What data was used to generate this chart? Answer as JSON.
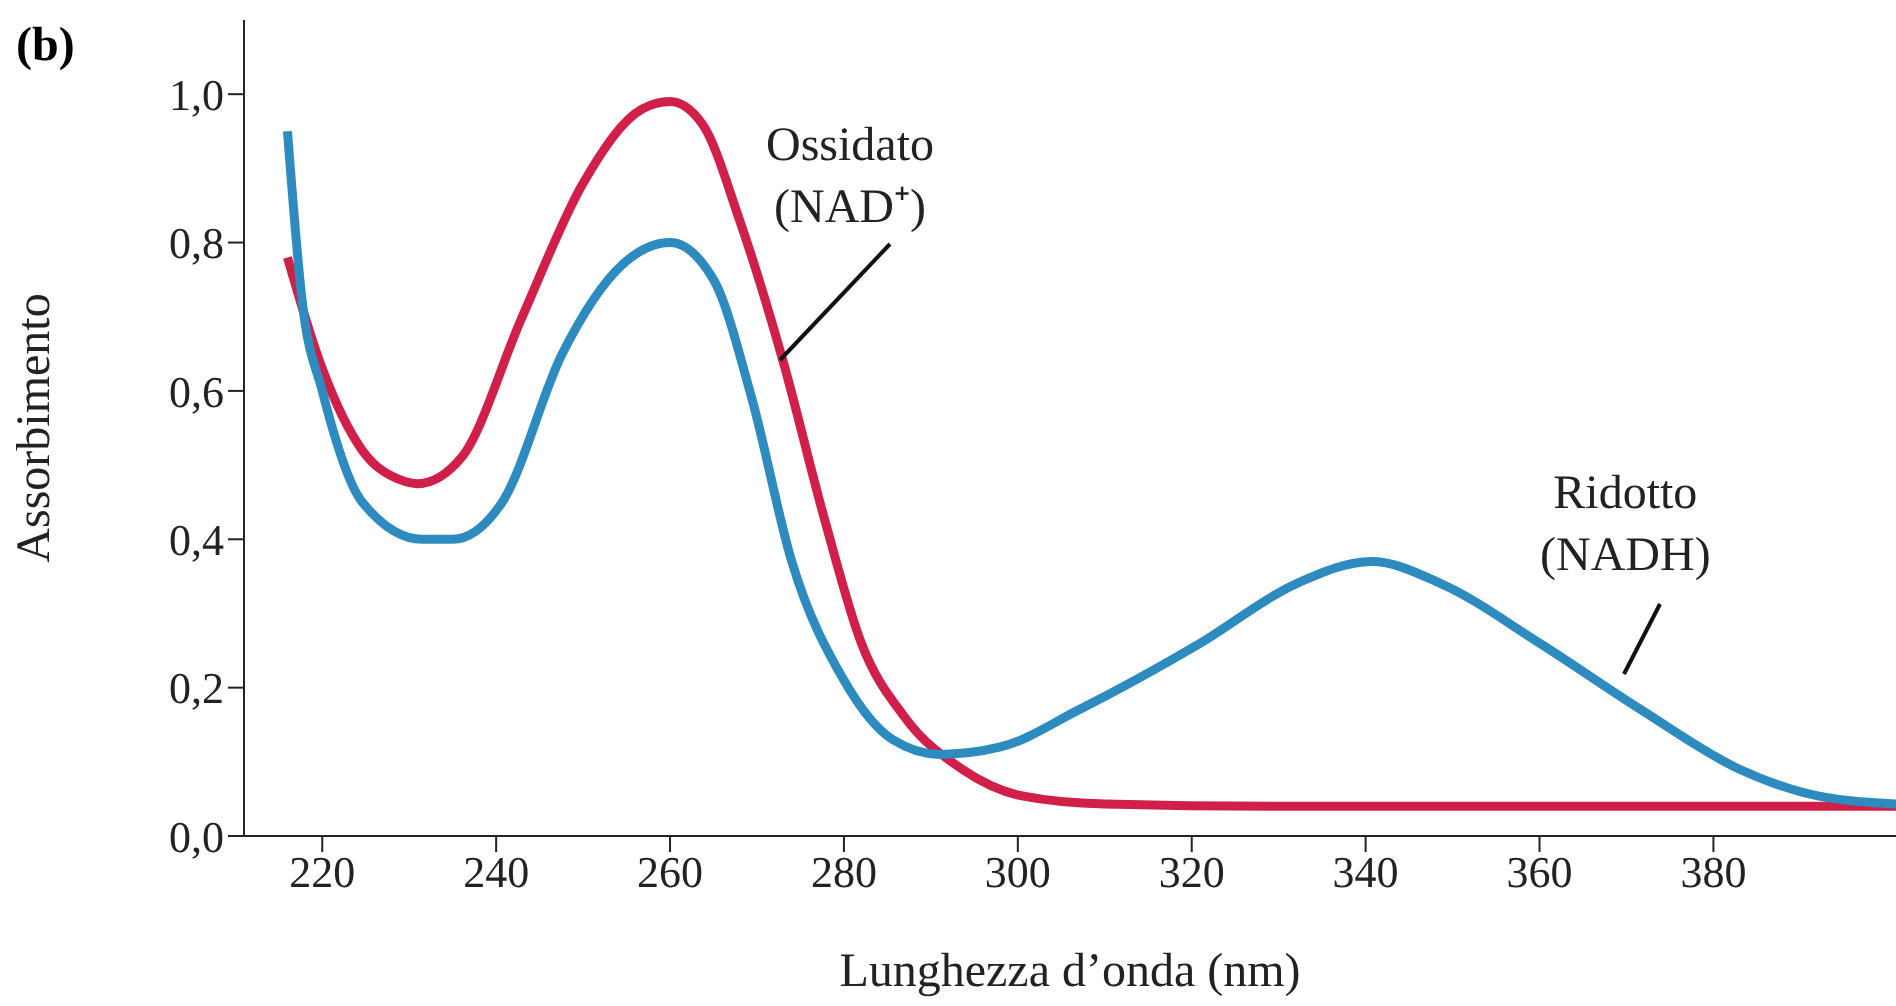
{
  "chart_data": {
    "type": "line",
    "xlabel": "Lunghezza d’onda (nm)",
    "ylabel": "Assorbimento",
    "annotations": [
      "(b)"
    ],
    "xlim": [
      211,
      401
    ],
    "xticks": [
      220,
      240,
      260,
      280,
      300,
      320,
      340,
      360,
      380
    ],
    "ylim": [
      0,
      1.1
    ],
    "yticks": [
      {
        "value": 0,
        "label": "0,0"
      },
      {
        "value": 0.2,
        "label": "0,2"
      },
      {
        "value": 0.4,
        "label": "0,4"
      },
      {
        "value": 0.6,
        "label": "0,6"
      },
      {
        "value": 0.8,
        "label": "0,8"
      },
      {
        "value": 1,
        "label": "1,0"
      }
    ],
    "marker": "none",
    "line_style": "solid",
    "series": [
      {
        "name": "Ossidato (NAD⁺)",
        "color": "#d0204a",
        "x": [
          216,
          220,
          224.6,
          229,
          231,
          236,
          243,
          250,
          256.8,
          260,
          263.7,
          268,
          273,
          277.7,
          282,
          287,
          293.6,
          300.5,
          310,
          330,
          360,
          401
        ],
        "values": [
          0.78,
          0.63,
          0.52,
          0.48,
          0.475,
          0.51,
          0.7,
          0.88,
          0.98,
          0.99,
          0.96,
          0.83,
          0.64,
          0.43,
          0.26,
          0.16,
          0.09,
          0.054,
          0.043,
          0.04,
          0.04,
          0.04
        ]
      },
      {
        "name": "Ridotto (NADH)",
        "color": "#2e8bc0",
        "x": [
          216,
          217.7,
          220,
          224.6,
          231.5,
          235,
          240.7,
          247.6,
          254.5,
          260,
          265,
          269.4,
          274,
          280,
          285.6,
          291,
          298,
          307,
          321,
          332,
          340.7,
          348.7,
          360,
          371.7,
          383,
          392,
          401
        ],
        "values": [
          0.95,
          0.72,
          0.6,
          0.45,
          0.4,
          0.4,
          0.45,
          0.65,
          0.77,
          0.8,
          0.75,
          0.59,
          0.37,
          0.21,
          0.13,
          0.11,
          0.12,
          0.17,
          0.26,
          0.34,
          0.37,
          0.34,
          0.26,
          0.17,
          0.09,
          0.054,
          0.043
        ]
      }
    ]
  }
}
